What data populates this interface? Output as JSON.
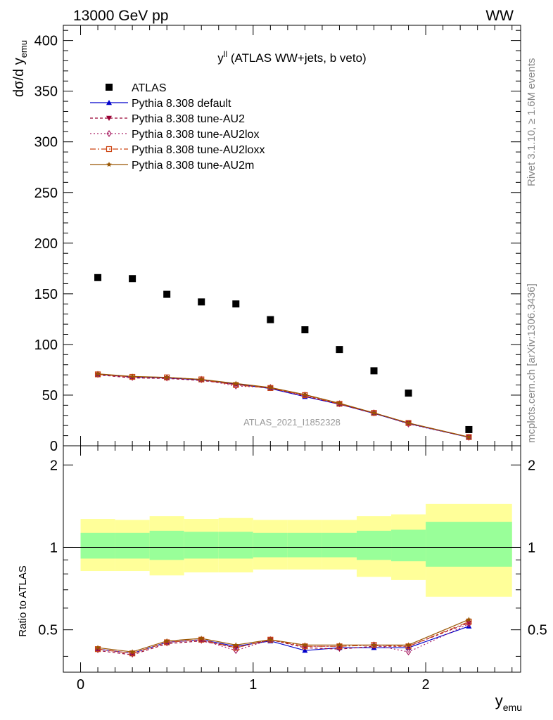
{
  "header": {
    "left": "13000 GeV pp",
    "right": "WW"
  },
  "side_labels": {
    "rivet": "Rivet 3.1.10, ≥ 1.6M events",
    "mcplots": "mcplots.cern.ch [arXiv:1306.3436]"
  },
  "plot_title": {
    "main": "y",
    "sup": "ll",
    "rest": " (ATLAS WW+jets, b veto)"
  },
  "watermark": "ATLAS_2021_I1852328",
  "main_axis": {
    "ylabel_main": "dσ/d y",
    "ylabel_sub": "emu",
    "yticks": [
      "0",
      "50",
      "100",
      "150",
      "200",
      "250",
      "300",
      "350",
      "400"
    ]
  },
  "ratio_axis": {
    "ylabel": "Ratio to ATLAS",
    "yticks": [
      "0.5",
      "1",
      "2"
    ]
  },
  "x_axis": {
    "label_main": "y",
    "label_sub": "emu",
    "ticks": [
      "0",
      "1",
      "2"
    ]
  },
  "legend": [
    "ATLAS",
    "Pythia 8.308 default",
    "Pythia 8.308 tune-AU2",
    "Pythia 8.308 tune-AU2lox",
    "Pythia 8.308 tune-AU2loxx",
    "Pythia 8.308 tune-AU2m"
  ],
  "chart_data": {
    "type": "scatter",
    "xlim": [
      -0.1,
      2.55
    ],
    "ylim": [
      0,
      415
    ],
    "ratio_ylim": [
      0.35,
      2.35
    ],
    "ratio_scale": "log",
    "grid": false,
    "legend_placement": "top-left",
    "bins": [
      [
        0,
        0.2
      ],
      [
        0.2,
        0.4
      ],
      [
        0.4,
        0.6
      ],
      [
        0.6,
        0.8
      ],
      [
        0.8,
        1.0
      ],
      [
        1.0,
        1.2
      ],
      [
        1.2,
        1.4
      ],
      [
        1.4,
        1.6
      ],
      [
        1.6,
        1.8
      ],
      [
        1.8,
        2.0
      ],
      [
        2.0,
        2.5
      ]
    ],
    "x": [
      0.1,
      0.3,
      0.5,
      0.7,
      0.9,
      1.1,
      1.3,
      1.5,
      1.7,
      1.9,
      2.25
    ],
    "data": {
      "name": "ATLAS",
      "values": [
        166,
        165,
        149.5,
        142,
        140,
        124.5,
        114.5,
        95,
        74,
        52,
        16
      ],
      "band_inner_lo": [
        0.91,
        0.91,
        0.9,
        0.91,
        0.91,
        0.92,
        0.92,
        0.92,
        0.9,
        0.89,
        0.85
      ],
      "band_inner_hi": [
        1.13,
        1.13,
        1.15,
        1.14,
        1.14,
        1.13,
        1.13,
        1.13,
        1.15,
        1.16,
        1.24
      ],
      "band_outer_lo": [
        0.82,
        0.82,
        0.79,
        0.81,
        0.81,
        0.83,
        0.83,
        0.83,
        0.78,
        0.76,
        0.66
      ],
      "band_outer_hi": [
        1.27,
        1.26,
        1.3,
        1.27,
        1.28,
        1.26,
        1.26,
        1.26,
        1.3,
        1.32,
        1.44
      ]
    },
    "series": [
      {
        "name": "Pythia 8.308 default",
        "color": "#0000cc",
        "dash": "",
        "marker": "triangle-up",
        "values": [
          70.5,
          68,
          67,
          65,
          61,
          56.5,
          48.5,
          41,
          32,
          22,
          8.3
        ],
        "ratio": [
          0.425,
          0.41,
          0.45,
          0.46,
          0.435,
          0.455,
          0.42,
          0.43,
          0.43,
          0.43,
          0.515
        ]
      },
      {
        "name": "Pythia 8.308 tune-AU2",
        "color": "#990033",
        "dash": "4,3",
        "marker": "triangle-down",
        "values": [
          70,
          67,
          66.5,
          64.5,
          60.5,
          57,
          49,
          41,
          32,
          22.5,
          8.5
        ],
        "ratio": [
          0.42,
          0.405,
          0.445,
          0.455,
          0.43,
          0.46,
          0.43,
          0.425,
          0.435,
          0.435,
          0.53
        ]
      },
      {
        "name": "Pythia 8.308 tune-AU2lox",
        "color": "#aa2266",
        "dash": "2,3",
        "marker": "diamond-open",
        "values": [
          70.5,
          67.5,
          67,
          65.5,
          59,
          57.5,
          50,
          41.5,
          32.5,
          21.5,
          8.4
        ],
        "ratio": [
          0.425,
          0.41,
          0.45,
          0.46,
          0.42,
          0.46,
          0.435,
          0.435,
          0.44,
          0.415,
          0.525
        ]
      },
      {
        "name": "Pythia 8.308 tune-AU2loxx",
        "color": "#cc4411",
        "dash": "8,3,2,3",
        "marker": "square-open",
        "values": [
          70.5,
          68,
          67.5,
          65.5,
          60,
          57,
          50,
          41.5,
          32.5,
          22.5,
          8.6
        ],
        "ratio": [
          0.425,
          0.41,
          0.45,
          0.46,
          0.43,
          0.46,
          0.435,
          0.435,
          0.44,
          0.435,
          0.535
        ]
      },
      {
        "name": "Pythia 8.308 tune-AU2m",
        "color": "#995500",
        "dash": "",
        "marker": "star",
        "values": [
          71,
          68.5,
          67.5,
          65.5,
          61.5,
          57.5,
          50.5,
          42,
          32.5,
          22.5,
          8.7
        ],
        "ratio": [
          0.43,
          0.415,
          0.455,
          0.465,
          0.44,
          0.46,
          0.44,
          0.44,
          0.44,
          0.44,
          0.545
        ]
      }
    ]
  }
}
